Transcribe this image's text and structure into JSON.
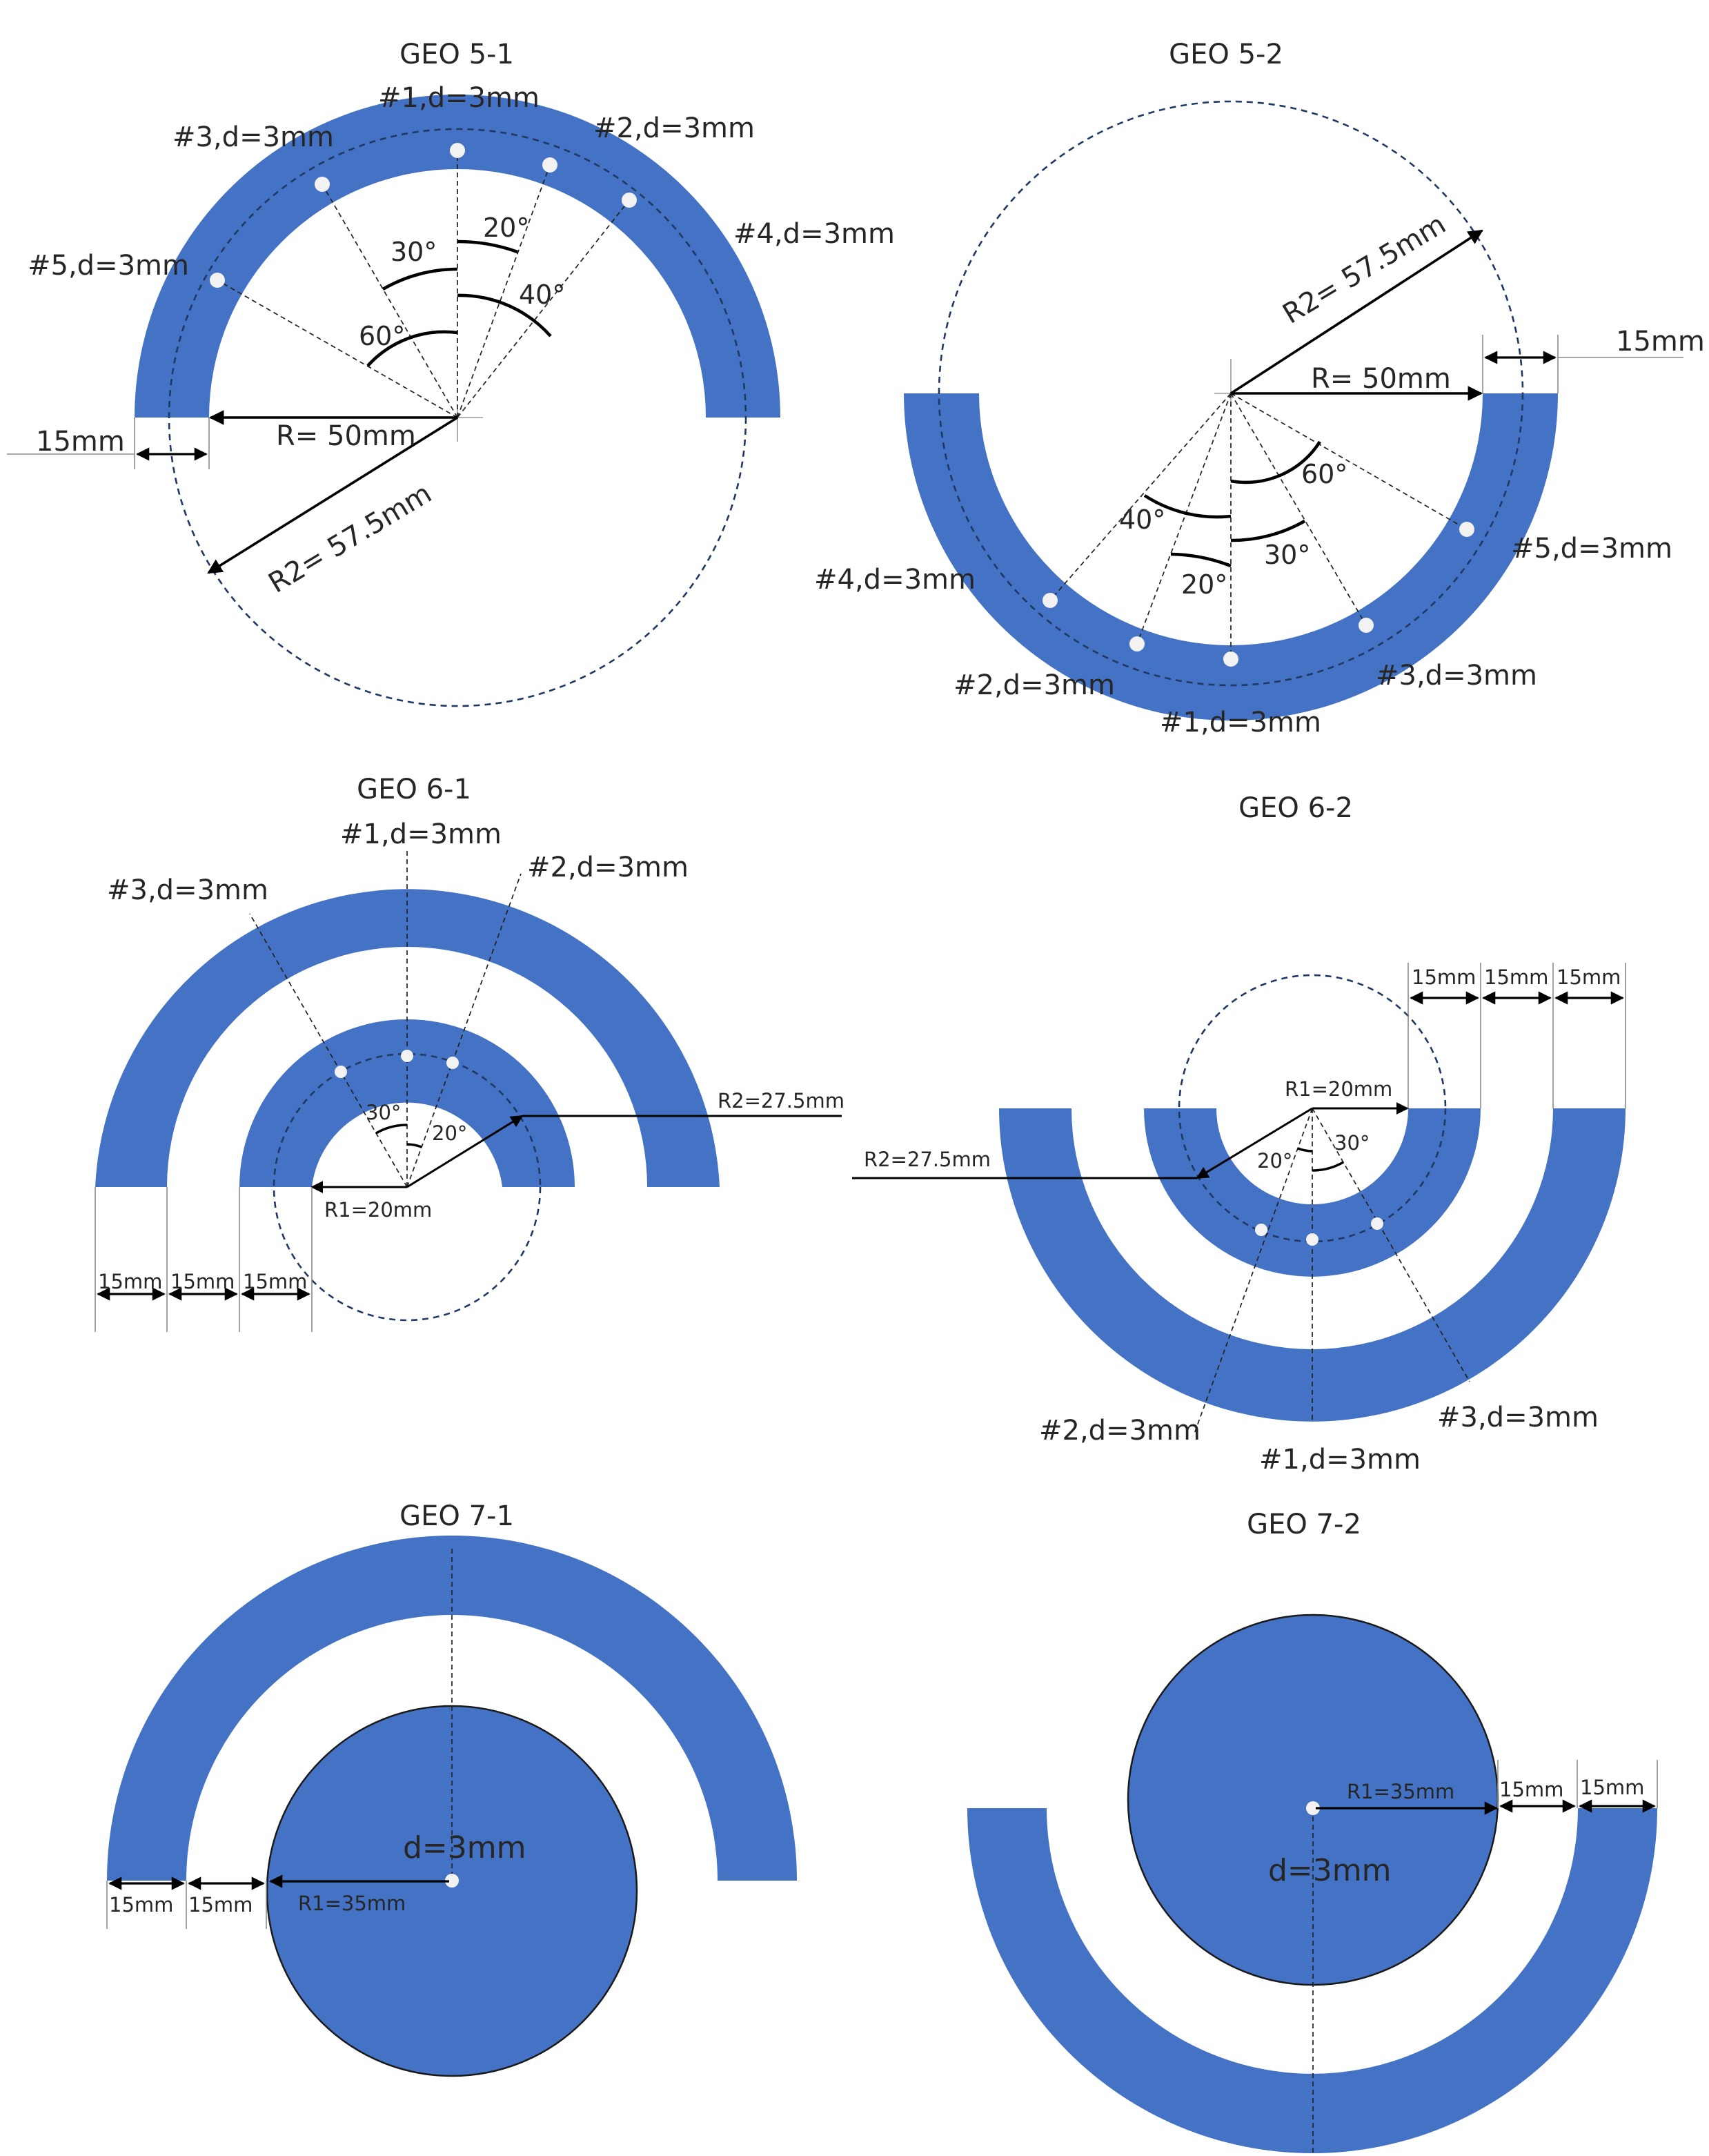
{
  "colors": {
    "ring": "#4472C4",
    "circle_dashed": "#1F3864",
    "hole": "#F2F2F2"
  },
  "geo5_1": {
    "title": "GEO 5-1",
    "holes": [
      "#1,d=3mm",
      "#2,d=3mm",
      "#3,d=3mm",
      "#4,d=3mm",
      "#5,d=3mm"
    ],
    "angles": [
      "30°",
      "20°",
      "60°",
      "40°"
    ],
    "r_label": "R= 50mm",
    "r2_label": "R2= 57.5mm",
    "width_label": "15mm"
  },
  "geo5_2": {
    "title": "GEO 5-2",
    "holes": [
      "#1,d=3mm",
      "#2,d=3mm",
      "#3,d=3mm",
      "#4,d=3mm",
      "#5,d=3mm"
    ],
    "angles": [
      "60°",
      "40°",
      "30°",
      "20°"
    ],
    "r_label": "R= 50mm",
    "r2_label": "R2= 57.5mm",
    "width_label": "15mm"
  },
  "geo6_1": {
    "title": "GEO 6-1",
    "holes": [
      "#1,d=3mm",
      "#2,d=3mm",
      "#3,d=3mm"
    ],
    "angles": [
      "30°",
      "20°"
    ],
    "r1_label": "R1=20mm",
    "r2_label": "R2=27.5mm",
    "widths": [
      "15mm",
      "15mm",
      "15mm"
    ]
  },
  "geo6_2": {
    "title": "GEO 6-2",
    "holes": [
      "#1,d=3mm",
      "#2,d=3mm",
      "#3,d=3mm"
    ],
    "angles": [
      "20°",
      "30°"
    ],
    "r1_label": "R1=20mm",
    "r2_label": "R2=27.5mm",
    "widths": [
      "15mm",
      "15mm",
      "15mm"
    ]
  },
  "geo7_1": {
    "title": "GEO 7-1",
    "hole": "d=3mm",
    "r1_label": "R1=35mm",
    "widths": [
      "15mm",
      "15mm"
    ]
  },
  "geo7_2": {
    "title": "GEO 7-2",
    "hole": "d=3mm",
    "r1_label": "R1=35mm",
    "widths": [
      "15mm",
      "15mm"
    ]
  }
}
